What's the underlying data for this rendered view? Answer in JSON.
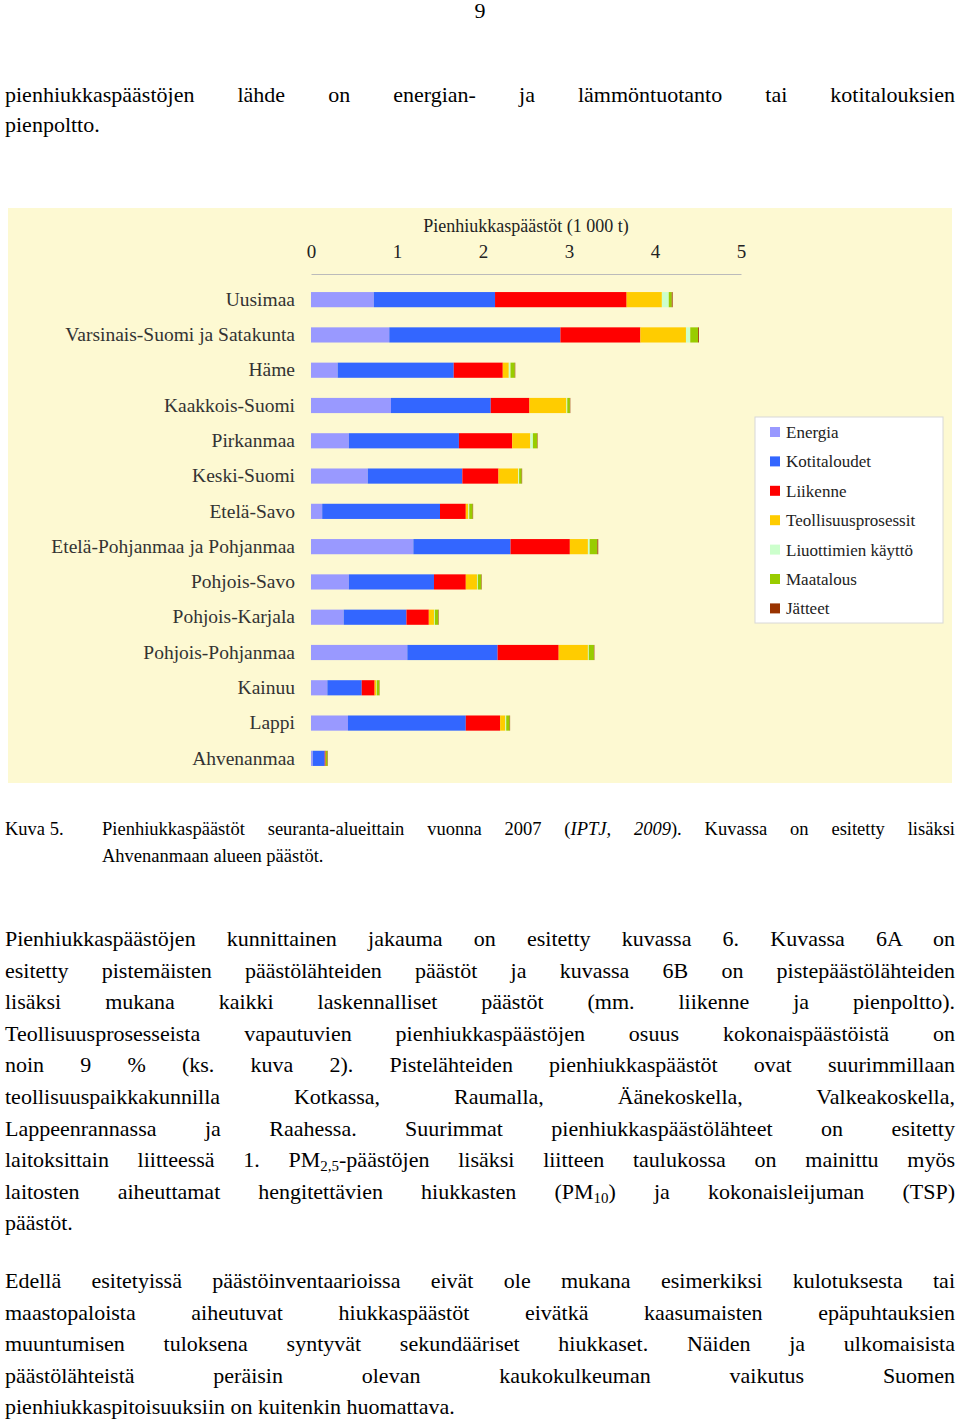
{
  "page_number": "9",
  "paragraphs": [
    {
      "lines": [
        [
          "pienhiukkaspäästöjen lähde on energian- ja lämmöntuotanto tai kotitalouksien"
        ],
        [
          "pienpoltto."
        ]
      ]
    },
    {
      "lines": [
        [
          "Pienhiukkaspäästöjen kunnittainen jakauma on esitetty kuvassa 6. Kuvassa 6A on"
        ],
        [
          "esitetty pistemäisten päästölähteiden päästöt ja kuvassa 6B on pistepäästölähteiden"
        ],
        [
          "lisäksi mukana kaikki laskennalliset päästöt (mm. liikenne ja pienpoltto)."
        ],
        [
          "Teollisuusprosesseista vapautuvien pienhiukkaspäästöjen osuus kokonaispäästöistä on"
        ],
        [
          "noin 9 % (ks. kuva 2). Pistelähteiden pienhiukkaspäästöt ovat suurimmillaan"
        ],
        [
          "teollisuuspaikkakunnilla Kotkassa, Raumalla, Äänekoskella, Valkeakoskella,"
        ],
        [
          "Lappeenrannassa ja Raahessa. Suurimmat pienhiukkaspäästölähteet on esitetty"
        ],
        [
          "laitoksittain liitteessä 1. PM",
          {
            "sub": "2,5"
          },
          "-päästöjen lisäksi liitteen taulukossa on mainittu myös"
        ],
        [
          "laitosten aiheuttamat hengitettävien hiukkasten (PM",
          {
            "sub": "10"
          },
          ") ja kokonaisleijuman (TSP)"
        ],
        [
          "päästöt."
        ]
      ]
    },
    {
      "lines": [
        [
          "Edellä esitetyissä päästöinventaarioissa eivät ole mukana esimerkiksi kulotuksesta tai"
        ],
        [
          "maastopaloista aiheutuvat hiukkaspäästöt eivätkä kaasumaisten epäpuhtauksien"
        ],
        [
          "muuntumisen tuloksena syntyvät sekundääriset hiukkaset. Näiden ja ulkomaisista"
        ],
        [
          "päästölähteistä peräisin olevan kaukokulkeuman vaikutus Suomen"
        ],
        [
          "pienhiukkaspitoisuuksiin on kuitenkin huomattava."
        ]
      ]
    }
  ],
  "chart_data": {
    "type": "bar",
    "orientation": "horizontal",
    "stacked": true,
    "grid": false,
    "legend": "right",
    "x_label": "Pienhiukkaspäästöt (1 000 t)",
    "xlim": [
      0,
      5
    ],
    "xticks": [
      0,
      1,
      2,
      3,
      4,
      5
    ],
    "categories": [
      "Uusimaa",
      "Varsinais-Suomi ja Satakunta",
      "Häme",
      "Kaakkois-Suomi",
      "Pirkanmaa",
      "Keski-Suomi",
      "Etelä-Savo",
      "Etelä-Pohjanmaa ja Pohjanmaa",
      "Pohjois-Savo",
      "Pohjois-Karjala",
      "Pohjois-Pohjanmaa",
      "Kainuu",
      "Lappi",
      "Ahvenanmaa"
    ],
    "series": [
      {
        "name": "Energia",
        "color": "#9999ff",
        "values": [
          0.73,
          0.91,
          0.31,
          0.93,
          0.44,
          0.66,
          0.13,
          1.19,
          0.44,
          0.38,
          1.12,
          0.19,
          0.43,
          0.02
        ]
      },
      {
        "name": "Kotitaloudet",
        "color": "#3366ff",
        "values": [
          1.41,
          1.99,
          1.35,
          1.16,
          1.28,
          1.1,
          1.37,
          1.13,
          0.99,
          0.73,
          1.05,
          0.4,
          1.37,
          0.14
        ]
      },
      {
        "name": "Liikenne",
        "color": "#ff0000",
        "values": [
          1.53,
          0.93,
          0.57,
          0.45,
          0.62,
          0.42,
          0.3,
          0.69,
          0.37,
          0.26,
          0.71,
          0.15,
          0.4,
          0.01
        ]
      },
      {
        "name": "Teollisuusprosessit",
        "color": "#ffcc00",
        "values": [
          0.41,
          0.53,
          0.07,
          0.43,
          0.21,
          0.23,
          0.03,
          0.21,
          0.13,
          0.06,
          0.34,
          0.02,
          0.06,
          0
        ]
      },
      {
        "name": "Liuottimien käyttö",
        "color": "#ccffcc",
        "values": [
          0.08,
          0.05,
          0.02,
          0.01,
          0.03,
          0.01,
          0.01,
          0.02,
          0.01,
          0.01,
          0.01,
          0.005,
          0.01,
          0
        ]
      },
      {
        "name": "Maatalous",
        "color": "#99cc00",
        "values": [
          0.035,
          0.09,
          0.05,
          0.03,
          0.05,
          0.03,
          0.04,
          0.09,
          0.04,
          0.04,
          0.06,
          0.03,
          0.04,
          0.02
        ]
      },
      {
        "name": "Jätteet",
        "color": "#993300",
        "values": [
          0.01,
          0.01,
          0.005,
          0.005,
          0.005,
          0.005,
          0.005,
          0.01,
          0.005,
          0.005,
          0.005,
          0.003,
          0.005,
          0.005
        ]
      }
    ]
  },
  "caption": {
    "label": "Kuva 5.",
    "lines": [
      [
        "Pienhiukkaspäästöt seuranta-alueittain vuonna 2007 (",
        {
          "italic": "IPTJ, 2009"
        },
        "). Kuvassa on esitetty lisäksi"
      ],
      [
        "Ahvenanmaan alueen päästöt."
      ]
    ]
  }
}
